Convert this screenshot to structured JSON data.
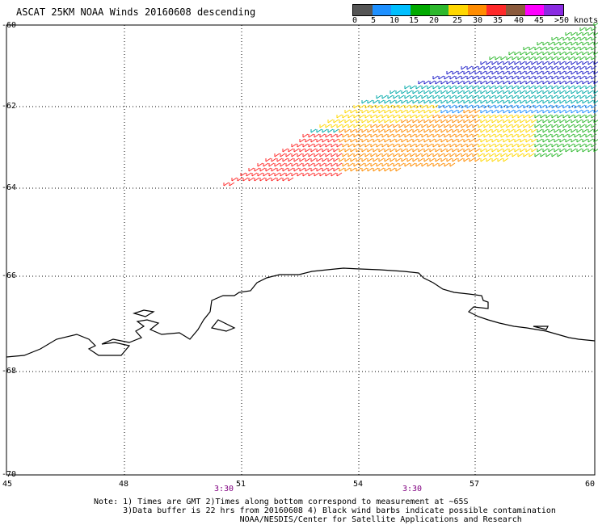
{
  "title": "ASCAT 25KM NOAA Winds 20160608 descending",
  "colorbar": {
    "labels": [
      "0",
      "5",
      "10",
      "15",
      "20",
      "25",
      "30",
      "35",
      "40",
      "45",
      ">50 knots"
    ],
    "colors": [
      "#555555",
      "#1e90ff",
      "#00bfff",
      "#00aa00",
      "#2db82d",
      "#ffd700",
      "#ff8c00",
      "#ff2a2a",
      "#8b5a3c",
      "#ff00ff",
      "#8a2be2"
    ]
  },
  "axes": {
    "y_labels": [
      "-60",
      "-62",
      "-64",
      "-66",
      "-68",
      "-70"
    ],
    "x_labels": [
      "45",
      "48",
      "51",
      "54",
      "57",
      "60"
    ],
    "time_labels": [
      "3:30",
      "3:30"
    ]
  },
  "map": {
    "lon_range": [
      45,
      60
    ],
    "lat_range": [
      -70,
      -60
    ],
    "grid": "dotted"
  },
  "notes": [
    "Note: 1) Times are GMT 2)Times along bottom correspond to measurement at ~65S",
    "      3)Data buffer is 22 hrs from 20160608 4) Black wind barbs indicate possible contamination",
    "                              NOAA/NESDIS/Center for Satellite Applications and Research"
  ]
}
